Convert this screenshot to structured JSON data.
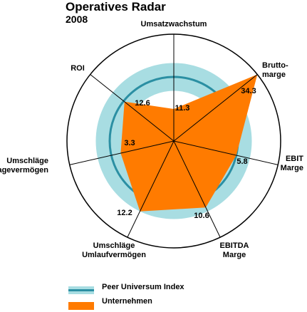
{
  "header": {
    "title": "Operatives Radar",
    "subtitle": "2008"
  },
  "legend": {
    "peer": "Peer Universum Index",
    "company": "Unternehmen"
  },
  "colors": {
    "peer_band": "#a8dde2",
    "peer_line": "#2b8fa3",
    "company": "#ff7b00",
    "grid": "#000000"
  },
  "chart_data": {
    "type": "radar",
    "title": "Operatives Radar",
    "subtitle": "2008",
    "axes": [
      {
        "label": [
          "Umsatzwachstum"
        ],
        "company_value_label": "11.3"
      },
      {
        "label": [
          "Brutto-",
          "marge"
        ],
        "company_value_label": "34.3"
      },
      {
        "label": [
          "EBIT",
          "Marge"
        ],
        "company_value_label": "5.8"
      },
      {
        "label": [
          "EBITDA",
          "Marge"
        ],
        "company_value_label": "10.6"
      },
      {
        "label": [
          "Umschläge",
          "Umlaufvermögen"
        ],
        "company_value_label": "12.2"
      },
      {
        "label": [
          "Umschläge",
          "Anlagevermögen"
        ],
        "company_value_label": "3.3"
      },
      {
        "label": [
          "ROI"
        ],
        "company_value_label": "12.6"
      }
    ],
    "series": [
      {
        "name": "Peer Universum Index",
        "relative_scores": [
          0.6,
          0.6,
          0.6,
          0.6,
          0.6,
          0.6,
          0.6
        ]
      },
      {
        "name": "Unternehmen",
        "relative_scores": [
          0.3,
          1.0,
          0.6,
          0.69,
          0.73,
          0.51,
          0.59
        ]
      }
    ],
    "peer_band": [
      0.47,
      0.73
    ],
    "scale_max": 1.0
  }
}
